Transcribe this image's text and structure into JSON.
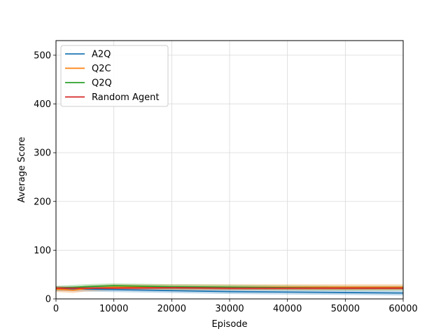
{
  "chart_data": {
    "type": "line",
    "xlabel": "Episode",
    "ylabel": "Average Score",
    "xlim": [
      0,
      60000
    ],
    "ylim": [
      0,
      530
    ],
    "x_ticks": [
      0,
      10000,
      20000,
      30000,
      40000,
      50000,
      60000
    ],
    "y_ticks": [
      0,
      100,
      200,
      300,
      400,
      500
    ],
    "grid": true,
    "legend_position": "top-left",
    "series": [
      {
        "name": "A2Q",
        "color": "#1f77b4",
        "x": [
          0,
          5000,
          10000,
          20000,
          30000,
          40000,
          50000,
          60000
        ],
        "y": [
          21,
          20,
          19,
          17,
          15,
          14,
          13,
          12
        ],
        "band": 5
      },
      {
        "name": "Q2C",
        "color": "#ff7f0e",
        "x": [
          0,
          3000,
          5000,
          10000,
          20000,
          30000,
          40000,
          50000,
          60000
        ],
        "y": [
          20,
          18,
          21,
          24,
          24,
          24,
          24,
          24,
          24
        ],
        "band": 6
      },
      {
        "name": "Q2Q",
        "color": "#2ca02c",
        "x": [
          0,
          5000,
          10000,
          15000,
          20000,
          30000,
          40000,
          50000,
          60000
        ],
        "y": [
          22,
          25,
          27,
          26,
          25,
          24,
          23,
          22,
          22
        ],
        "band": 5
      },
      {
        "name": "Random Agent",
        "color": "#d62728",
        "x": [
          0,
          5000,
          10000,
          20000,
          30000,
          40000,
          50000,
          60000
        ],
        "y": [
          22,
          22,
          22,
          23,
          22,
          22,
          22,
          22
        ],
        "band": 3
      }
    ]
  }
}
